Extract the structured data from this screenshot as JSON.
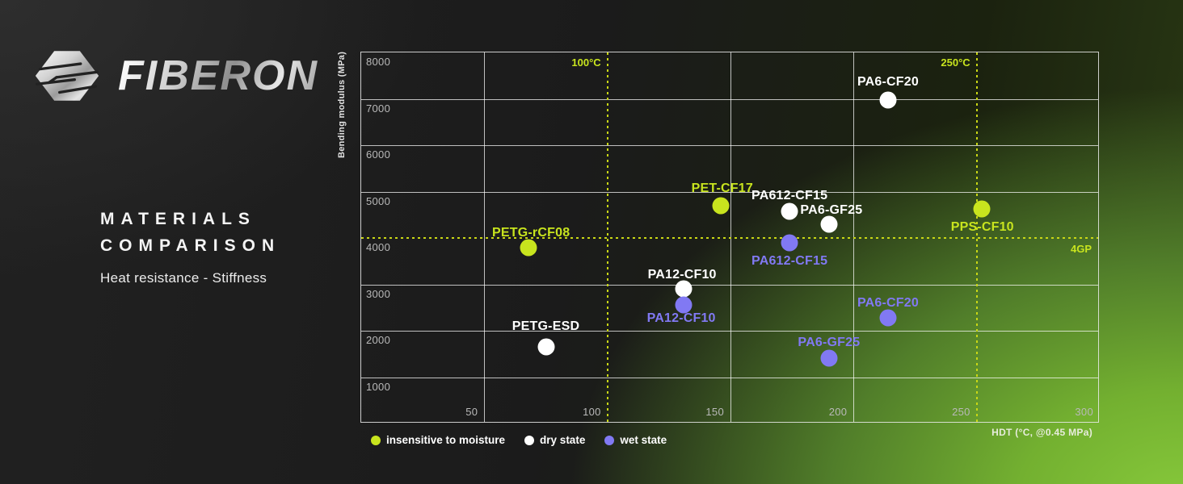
{
  "brand": {
    "name": "FIBERON"
  },
  "panel": {
    "title_line1": "MATERIALS",
    "title_line2": "COMPARISON",
    "subtitle": "Heat resistance - Stiffness"
  },
  "colors": {
    "green": "#c8e41e",
    "white": "#ffffff",
    "purple": "#8179f3",
    "dash_line": "#c9d715",
    "tick": "#b9b9b9"
  },
  "chart_data": {
    "type": "scatter",
    "title": "Materials comparison — Heat resistance vs Stiffness",
    "xlabel": "HDT (°C, @0.45 MPa)",
    "ylabel": "Bending modulus (MPa)",
    "xlim": [
      0,
      300
    ],
    "ylim": [
      0,
      8000
    ],
    "x_ticks": [
      50,
      100,
      150,
      200,
      250,
      300
    ],
    "y_ticks": [
      1000,
      2000,
      3000,
      4000,
      5000,
      6000,
      7000,
      8000
    ],
    "x_gridlines_solid": [
      50,
      150,
      200
    ],
    "y_gridlines_solid": [
      1000,
      2000,
      3000,
      5000,
      6000,
      7000
    ],
    "grid": true,
    "legend_position": "bottom-left",
    "reference_lines": {
      "vertical": [
        {
          "value": 100,
          "label": "100°C"
        },
        {
          "value": 250,
          "label": "250°C"
        }
      ],
      "horizontal": [
        {
          "value": 4000,
          "label": "4GP"
        }
      ]
    },
    "series": [
      {
        "name": "insensitive to moisture",
        "color_key": "green",
        "points": [
          {
            "label": "PETG-rCF08",
            "x": 68,
            "y": 3800,
            "label_dx": 3,
            "label_dy": -18
          },
          {
            "label": "PET-CF17",
            "x": 146,
            "y": 4700,
            "label_dx": 2,
            "label_dy": -21
          },
          {
            "label": "PPS-CF10",
            "x": 252,
            "y": 4620,
            "label_dx": 1,
            "label_dy": 23
          }
        ]
      },
      {
        "name": "dry state",
        "color_key": "white",
        "points": [
          {
            "label": "PETG-ESD",
            "x": 75,
            "y": 1650,
            "label_dx": 0,
            "label_dy": -25
          },
          {
            "label": "PA12-CF10",
            "x": 131,
            "y": 2900,
            "label_dx": -2,
            "label_dy": -17
          },
          {
            "label": "PA612-CF15",
            "x": 174,
            "y": 4570,
            "label_dx": 0,
            "label_dy": -19
          },
          {
            "label": "PA6-GF25",
            "x": 190,
            "y": 4290,
            "label_dx": 3,
            "label_dy": -17
          },
          {
            "label": "PA6-CF20",
            "x": 214,
            "y": 6970,
            "label_dx": 0,
            "label_dy": -22
          }
        ]
      },
      {
        "name": "wet state",
        "color_key": "purple",
        "points": [
          {
            "label": "PA12-CF10",
            "x": 131,
            "y": 2560,
            "label_dx": -3,
            "label_dy": 17
          },
          {
            "label": "PA612-CF15",
            "x": 174,
            "y": 3900,
            "label_dx": 0,
            "label_dy": 23
          },
          {
            "label": "PA6-GF25",
            "x": 190,
            "y": 1410,
            "label_dx": 0,
            "label_dy": -19
          },
          {
            "label": "PA6-CF20",
            "x": 214,
            "y": 2270,
            "label_dx": 0,
            "label_dy": -18
          }
        ]
      }
    ]
  }
}
